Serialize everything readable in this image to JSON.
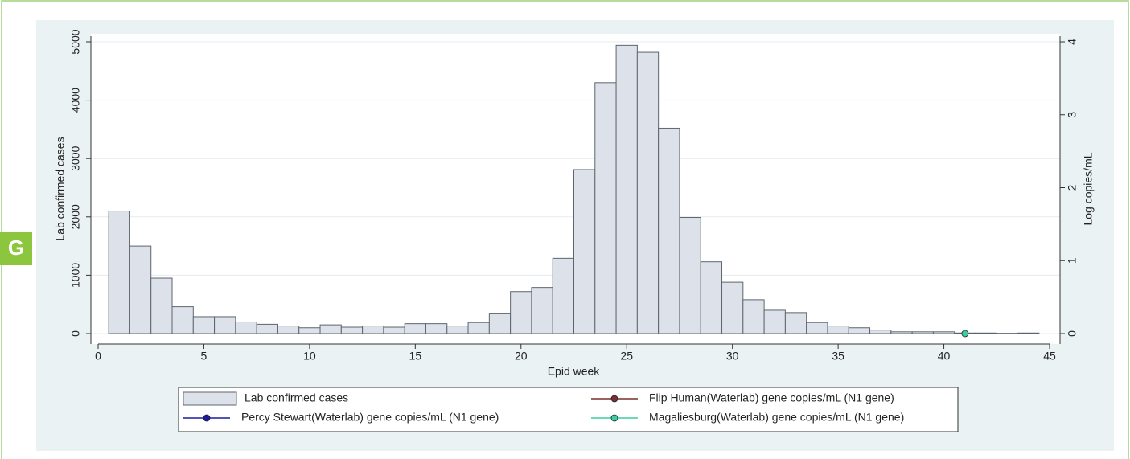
{
  "panel_label": "G",
  "chart_data": {
    "type": "bar",
    "xlabel": "Epid week",
    "ylabel": "Lab confirmed cases",
    "y2label": "Log copies/mL",
    "x": [
      1,
      2,
      3,
      4,
      5,
      6,
      7,
      8,
      9,
      10,
      11,
      12,
      13,
      14,
      15,
      16,
      17,
      18,
      19,
      20,
      21,
      22,
      23,
      24,
      25,
      26,
      27,
      28,
      29,
      30,
      31,
      32,
      33,
      34,
      35,
      36,
      37,
      38,
      39,
      40,
      41,
      42,
      43,
      44
    ],
    "xlim": [
      0,
      45
    ],
    "xticks": [
      0,
      5,
      10,
      15,
      20,
      25,
      30,
      35,
      40,
      45
    ],
    "ylim": [
      0,
      5000
    ],
    "yticks": [
      0,
      1000,
      2000,
      3000,
      4000,
      5000
    ],
    "y2lim": [
      0,
      4
    ],
    "y2ticks": [
      0,
      1,
      2,
      3,
      4
    ],
    "grid": true,
    "series": [
      {
        "name": "Lab confirmed cases",
        "type": "bar",
        "color": "#dde2ea",
        "values": [
          2100,
          1500,
          950,
          460,
          290,
          290,
          200,
          160,
          130,
          100,
          150,
          110,
          130,
          110,
          170,
          170,
          130,
          190,
          350,
          720,
          790,
          1290,
          2810,
          4300,
          4940,
          4820,
          3520,
          1990,
          1230,
          880,
          580,
          400,
          360,
          190,
          130,
          100,
          60,
          30,
          30,
          30,
          10,
          10,
          5,
          10
        ]
      },
      {
        "name": "Flip Human(Waterlab) gene copies/mL (N1 gene)",
        "type": "line",
        "axis": "y2",
        "color": "#7a2e2e",
        "x": [],
        "values": []
      },
      {
        "name": "Percy Stewart(Waterlab) gene copies/mL (N1 gene)",
        "type": "line",
        "axis": "y2",
        "color": "#1c1c9a",
        "x": [],
        "values": []
      },
      {
        "name": "Magaliesburg(Waterlab) gene copies/mL (N1 gene)",
        "type": "line",
        "axis": "y2",
        "color": "#3ccf9c",
        "x": [
          41
        ],
        "values": [
          0
        ]
      }
    ]
  }
}
